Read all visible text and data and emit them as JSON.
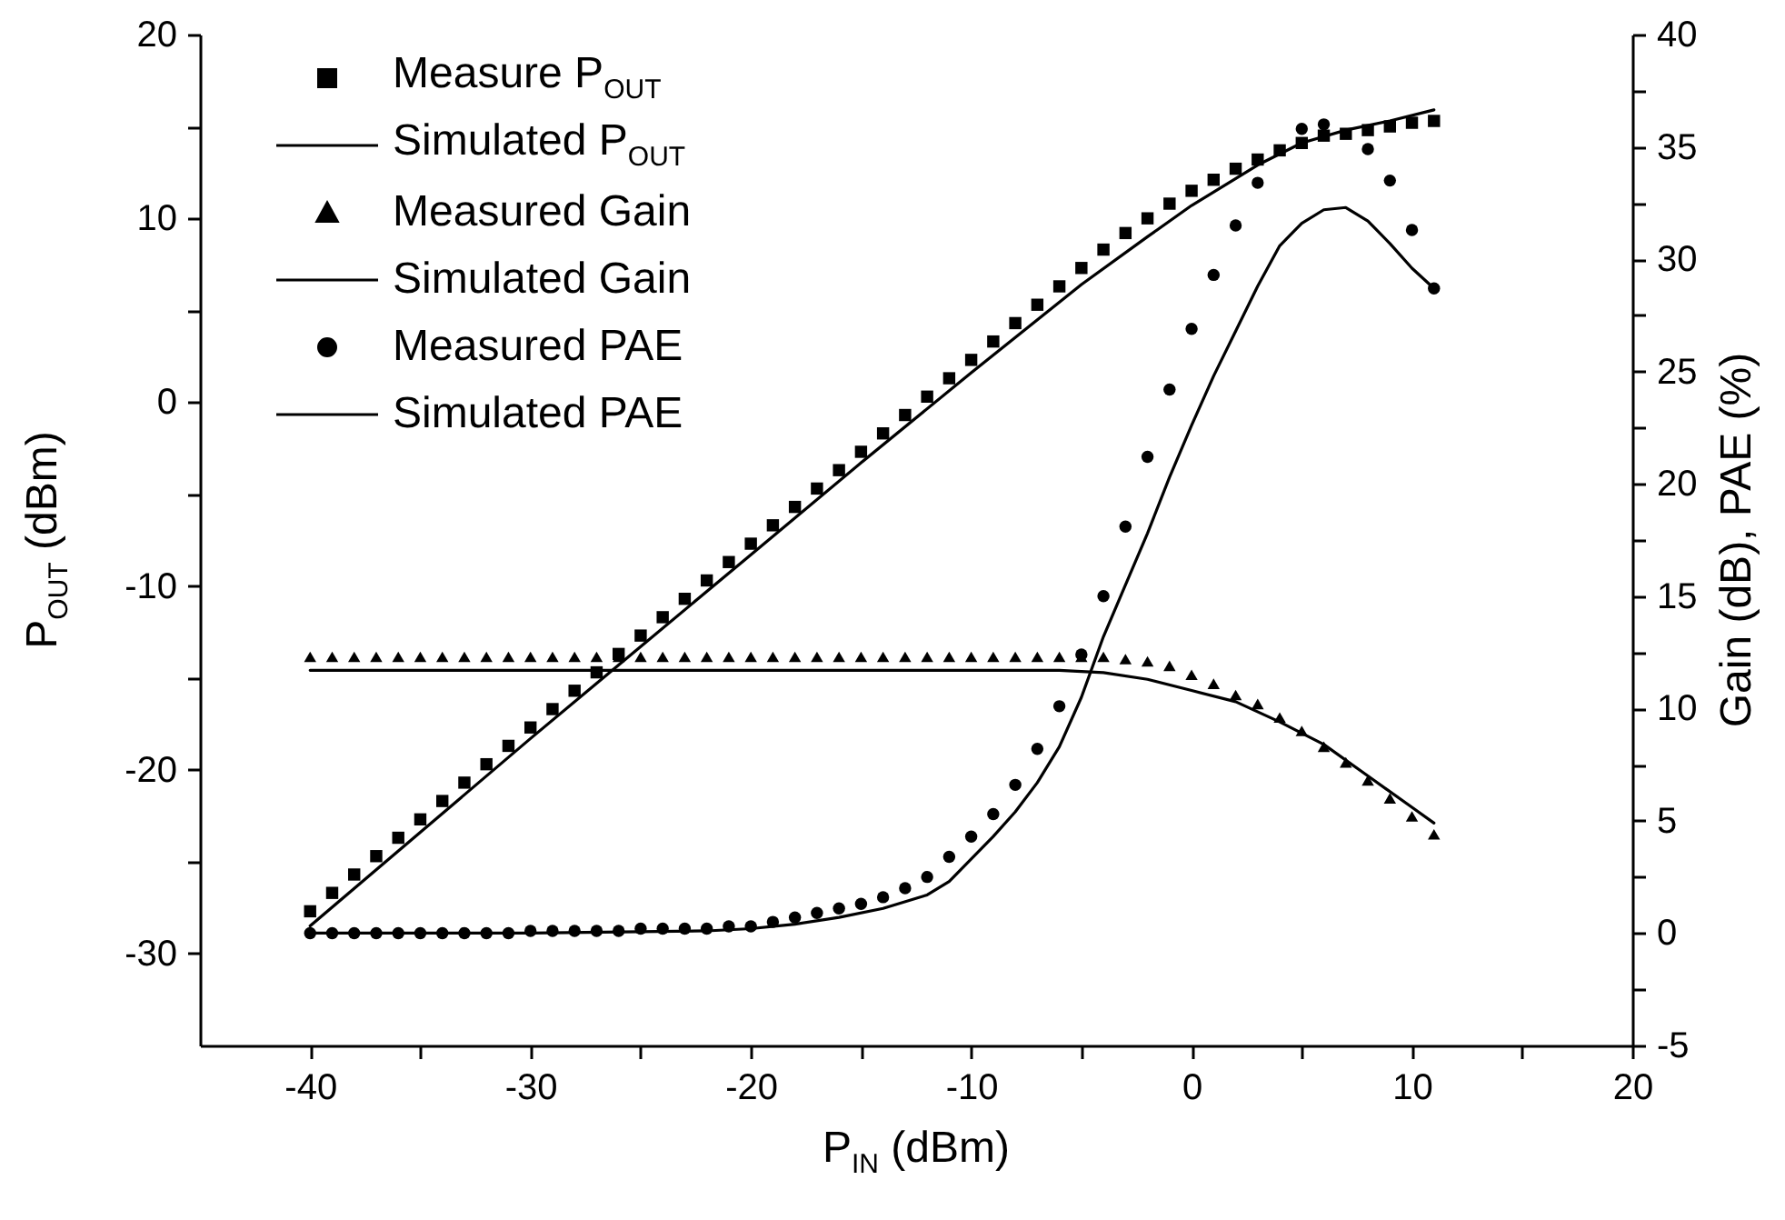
{
  "chart_data": {
    "type": "scatter",
    "xlabel": "P$_{IN}$ (dBm)",
    "ylabel": "P$_{OUT}$ (dBm)",
    "y2label": "Gain (dB), PAE (%)",
    "xlim": [
      -45,
      20
    ],
    "xticks": [
      -40,
      {
        "value": -35,
        "label": null
      },
      -30,
      {
        "value": -25,
        "label": null
      },
      -20,
      {
        "value": -15,
        "label": null
      },
      -10,
      {
        "value": -5,
        "label": null
      },
      0,
      {
        "value": 5,
        "label": null
      },
      10,
      {
        "value": 15,
        "label": null
      },
      20
    ],
    "ylim": [
      -35,
      20
    ],
    "yticks": [
      -30,
      {
        "value": -25,
        "label": null
      },
      -20,
      {
        "value": -15,
        "label": null
      },
      -10,
      {
        "value": -5,
        "label": null
      },
      0,
      {
        "value": 5,
        "label": null
      },
      10,
      {
        "value": 15,
        "label": null
      },
      20
    ],
    "y2lim": [
      -5,
      40
    ],
    "y2ticks": [
      -5,
      {
        "value": -2.5,
        "label": null
      },
      0,
      {
        "value": 2.5,
        "label": null
      },
      5,
      {
        "value": 7.5,
        "label": null
      },
      10,
      {
        "value": 12.5,
        "label": null
      },
      15,
      {
        "value": 17.5,
        "label": null
      },
      20,
      {
        "value": 22.5,
        "label": null
      },
      25,
      {
        "value": 27.5,
        "label": null
      },
      30,
      {
        "value": 32.5,
        "label": null
      },
      35,
      {
        "value": 37.5,
        "label": null
      },
      40
    ],
    "grid": false,
    "legend": "top left",
    "series": [
      {
        "name": "Measure P$_{OUT}$",
        "type": "scatter",
        "marker": "square",
        "color": "#000000",
        "x": [
          -40,
          -39,
          -38,
          -37,
          -36,
          -35,
          -34,
          -33,
          -32,
          -31,
          -30,
          -29,
          -28,
          -27,
          -26,
          -25,
          -24,
          -23,
          -22,
          -21,
          -20,
          -19,
          -18,
          -17,
          -16,
          -15,
          -14,
          -13,
          -12,
          -11,
          -10,
          -9,
          -8,
          -7,
          -6,
          -5,
          -4,
          -3,
          -2,
          -1,
          0,
          1,
          2,
          3,
          4,
          5,
          6,
          7,
          8,
          9,
          10,
          11
        ],
        "values": [
          -27.7,
          -26.7,
          -25.7,
          -24.7,
          -23.7,
          -22.7,
          -21.7,
          -20.7,
          -19.7,
          -18.7,
          -17.7,
          -16.7,
          -15.7,
          -14.7,
          -13.7,
          -12.7,
          -11.7,
          -10.7,
          -9.7,
          -8.7,
          -7.7,
          -6.7,
          -5.7,
          -4.7,
          -3.7,
          -2.7,
          -1.7,
          -0.7,
          0.3,
          1.3,
          2.3,
          3.3,
          4.3,
          5.3,
          6.3,
          7.3,
          8.3,
          9.2,
          10.0,
          10.8,
          11.5,
          12.1,
          12.7,
          13.2,
          13.7,
          14.1,
          14.5,
          14.6,
          14.8,
          15.0,
          15.2,
          15.3
        ]
      },
      {
        "name": "Simulated P$_{OUT}$",
        "type": "line",
        "color": "#000000",
        "x": [
          -40,
          -35,
          -30,
          -25,
          -20,
          -15,
          -10,
          -5,
          -2,
          0,
          3,
          5,
          7,
          9,
          11
        ],
        "values": [
          -28.5,
          -23.4,
          -18.3,
          -13.3,
          -8.3,
          -3.3,
          1.6,
          6.4,
          9.0,
          10.7,
          12.9,
          14.1,
          14.8,
          15.3,
          15.9
        ]
      },
      {
        "name": "Measured Gain",
        "type": "scatter",
        "marker": "triangle",
        "color": "#000000",
        "axis": "y2",
        "x": [
          -40,
          -39,
          -38,
          -37,
          -36,
          -35,
          -34,
          -33,
          -32,
          -31,
          -30,
          -29,
          -28,
          -27,
          -26,
          -25,
          -24,
          -23,
          -22,
          -21,
          -20,
          -19,
          -18,
          -17,
          -16,
          -15,
          -14,
          -13,
          -12,
          -11,
          -10,
          -9,
          -8,
          -7,
          -6,
          -5,
          -4,
          -3,
          -2,
          -1,
          0,
          1,
          2,
          3,
          4,
          5,
          6,
          7,
          8,
          9,
          10,
          11
        ],
        "values": [
          12.3,
          12.3,
          12.3,
          12.3,
          12.3,
          12.3,
          12.3,
          12.3,
          12.3,
          12.3,
          12.3,
          12.3,
          12.3,
          12.3,
          12.3,
          12.3,
          12.3,
          12.3,
          12.3,
          12.3,
          12.3,
          12.3,
          12.3,
          12.3,
          12.3,
          12.3,
          12.3,
          12.3,
          12.3,
          12.3,
          12.3,
          12.3,
          12.3,
          12.3,
          12.3,
          12.3,
          12.3,
          12.2,
          12.1,
          11.9,
          11.5,
          11.1,
          10.6,
          10.2,
          9.6,
          9.0,
          8.3,
          7.6,
          6.8,
          6.0,
          5.2,
          4.4
        ]
      },
      {
        "name": "Simulated Gain",
        "type": "line",
        "color": "#000000",
        "axis": "y2",
        "x": [
          -40,
          -20,
          -10,
          -6,
          -4,
          -2,
          0,
          2,
          4,
          6,
          8,
          10,
          11
        ],
        "values": [
          11.7,
          11.7,
          11.7,
          11.7,
          11.6,
          11.3,
          10.8,
          10.3,
          9.4,
          8.4,
          7.0,
          5.6,
          4.9
        ]
      },
      {
        "name": "Measured PAE",
        "type": "scatter",
        "marker": "circle",
        "color": "#000000",
        "axis": "y2",
        "x": [
          -40,
          -39,
          -38,
          -37,
          -36,
          -35,
          -34,
          -33,
          -32,
          -31,
          -30,
          -29,
          -28,
          -27,
          -26,
          -25,
          -24,
          -23,
          -22,
          -21,
          -20,
          -19,
          -18,
          -17,
          -16,
          -15,
          -14,
          -13,
          -12,
          -11,
          -10,
          -9,
          -8,
          -7,
          -6,
          -5,
          -4,
          -3,
          -2,
          -1,
          0,
          1,
          2,
          3,
          4,
          5,
          6,
          7,
          8,
          9,
          10,
          11
        ],
        "values": [
          0,
          0,
          0,
          0,
          0,
          0,
          0,
          0,
          0,
          0,
          0.1,
          0.1,
          0.1,
          0.1,
          0.1,
          0.2,
          0.2,
          0.2,
          0.2,
          0.3,
          0.3,
          0.5,
          0.7,
          0.9,
          1.1,
          1.3,
          1.6,
          2.0,
          2.5,
          3.4,
          4.3,
          5.3,
          6.6,
          8.2,
          10.1,
          12.4,
          15.0,
          18.1,
          21.2,
          24.2,
          26.9,
          29.3,
          31.5,
          33.4,
          null,
          35.8,
          36.0,
          null,
          34.9,
          33.5,
          31.3,
          28.7
        ]
      },
      {
        "name": "Simulated PAE",
        "type": "line",
        "color": "#000000",
        "axis": "y2",
        "x": [
          -40,
          -30,
          -22,
          -20,
          -18,
          -16,
          -14,
          -12,
          -11,
          -10,
          -9,
          -8,
          -7,
          -6,
          -5,
          -4,
          -3,
          -2,
          -1,
          0,
          1,
          2,
          3,
          4,
          5,
          6,
          7,
          8,
          9,
          10,
          11
        ],
        "values": [
          0,
          0,
          0.1,
          0.2,
          0.4,
          0.7,
          1.1,
          1.7,
          2.3,
          3.3,
          4.3,
          5.4,
          6.7,
          8.3,
          10.5,
          13.2,
          15.5,
          17.8,
          20.3,
          22.6,
          24.8,
          26.8,
          28.8,
          30.6,
          31.6,
          32.2,
          32.3,
          31.7,
          30.7,
          29.6,
          28.7
        ]
      }
    ]
  }
}
